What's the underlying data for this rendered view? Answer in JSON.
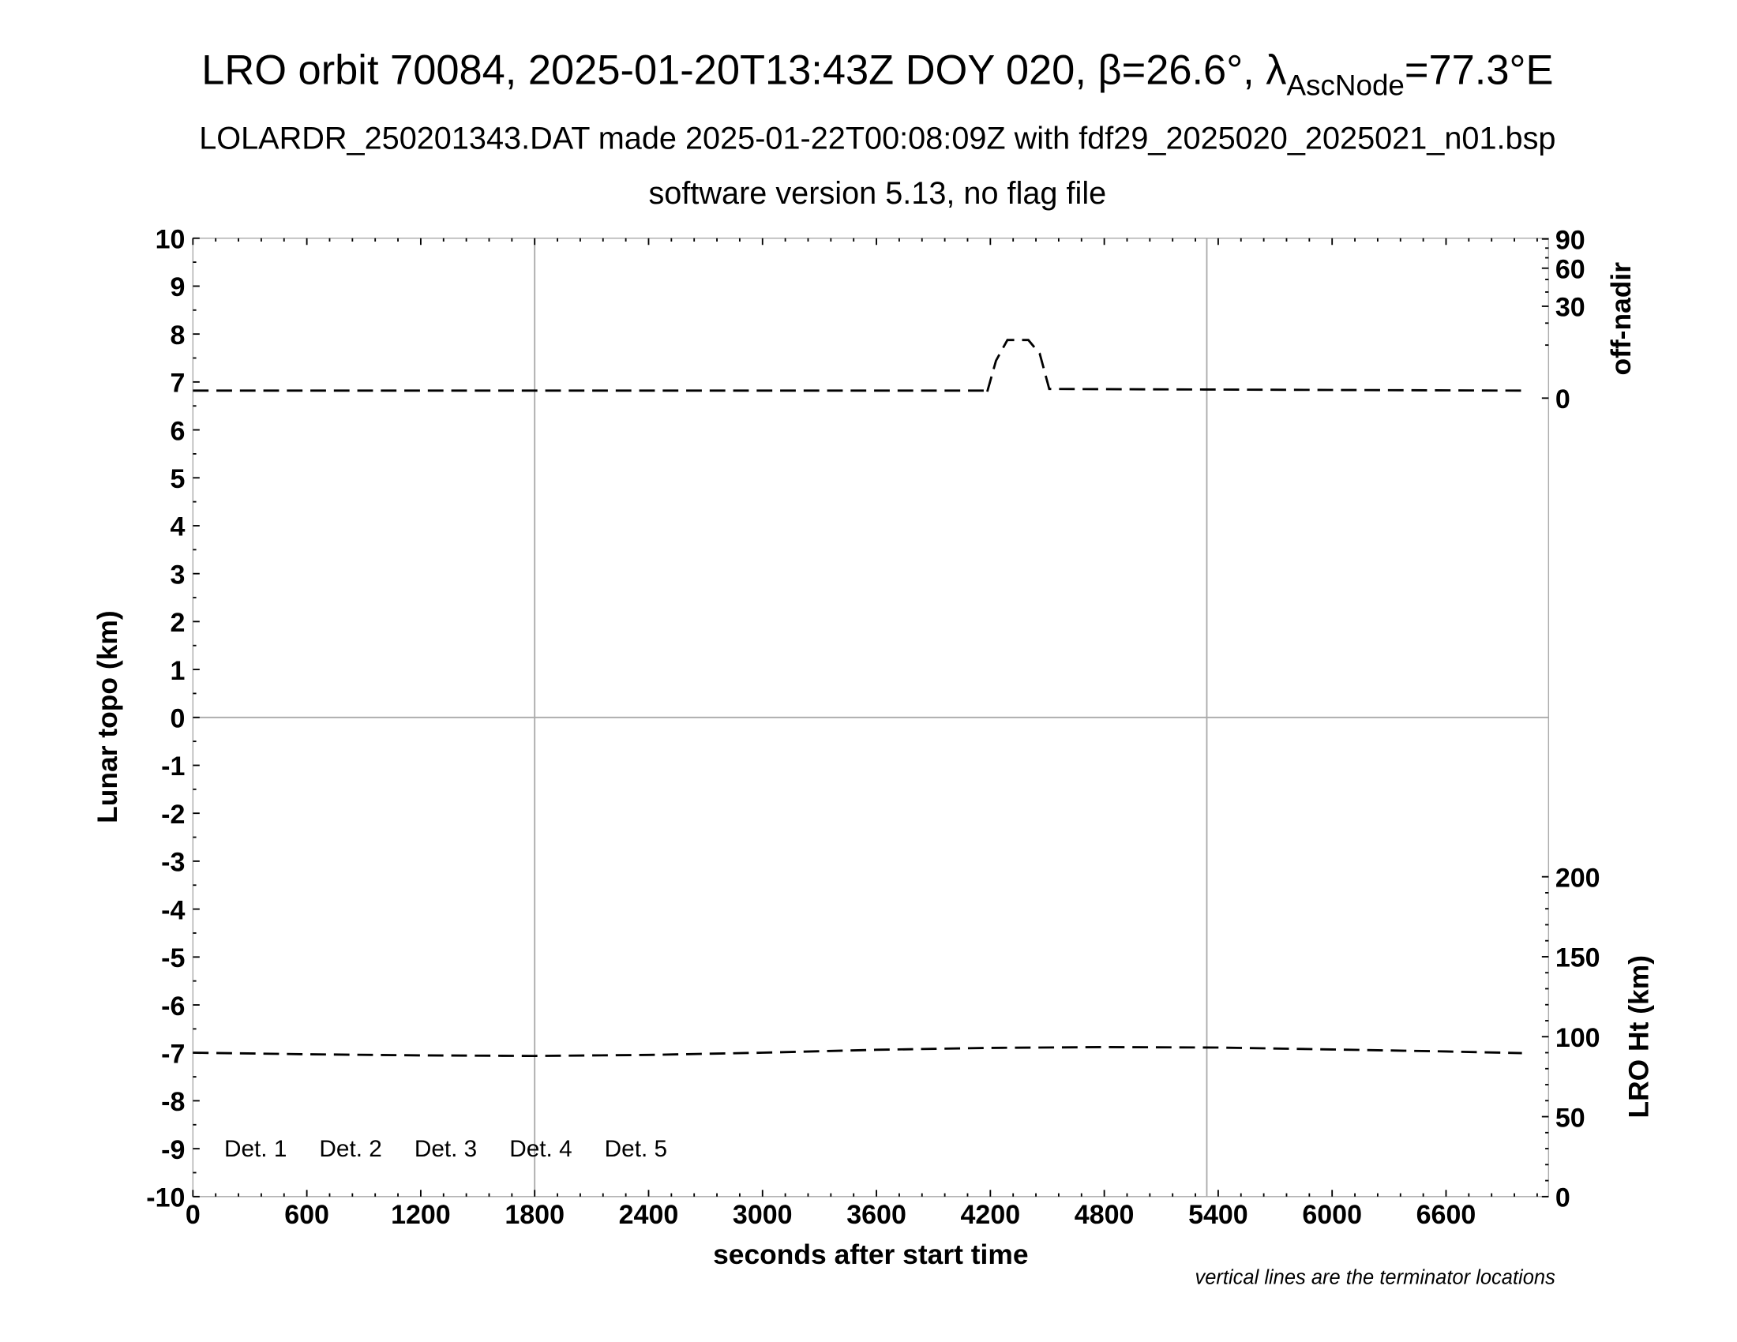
{
  "title": {
    "main_prefix": "LRO orbit 70084, 2025-01-20T13:43Z DOY 020, β=26.6°, λ",
    "main_sub": "AscNode",
    "main_suffix": "=77.3°E",
    "line2": "LOLARDR_250201343.DAT made 2025-01-22T00:08:09Z with fdf29_2025020_2025021_n01.bsp",
    "line3": "software version 5.13, no flag file"
  },
  "footnote": "vertical lines are the terminator locations",
  "chart_data": {
    "type": "line",
    "xlabel": "seconds after start time",
    "ylabel": "Lunar topo (km)",
    "y2_top_label": "off-nadir",
    "y2_bottom_label": "LRO Ht (km)",
    "xlim": [
      0,
      7140
    ],
    "ylim": [
      -10,
      10
    ],
    "x_ticks": [
      0,
      600,
      1200,
      1800,
      2400,
      3000,
      3600,
      4200,
      4800,
      5400,
      6000,
      6600
    ],
    "y_ticks": [
      10,
      9,
      8,
      7,
      6,
      5,
      4,
      3,
      2,
      1,
      0,
      -1,
      -2,
      -3,
      -4,
      -5,
      -6,
      -7,
      -8,
      -9,
      -10
    ],
    "off_nadir_scale": "sqrt",
    "off_nadir_ticks": [
      0,
      30,
      60,
      90
    ],
    "ht_ticks": [
      0,
      50,
      100,
      150,
      200
    ],
    "terminator_lines_x": [
      1800,
      5340
    ],
    "legend": [
      {
        "label": "Det. 1",
        "color": "#000000"
      },
      {
        "label": "Det. 2",
        "color": "#0000ff"
      },
      {
        "label": "Det. 3",
        "color": "#00ff00"
      },
      {
        "label": "Det. 4",
        "color": "#ffa500"
      },
      {
        "label": "Det. 5",
        "color": "#ff0000"
      }
    ],
    "series": [
      {
        "axis": "off-nadir (deg)",
        "style": "dashed",
        "x": [
          0,
          4170,
          4180,
          4230,
          4290,
          4400,
          4460,
          4510,
          7000
        ],
        "y": [
          0.2,
          0.2,
          0.05,
          5,
          12,
          12,
          7,
          0.3,
          0.2
        ]
      },
      {
        "axis": "LRO Ht (km)",
        "style": "dashed",
        "x": [
          0,
          600,
          1200,
          1800,
          2400,
          3000,
          3600,
          4200,
          4800,
          5400,
          6000,
          6600,
          7000
        ],
        "y": [
          90,
          89,
          88.3,
          88,
          88.6,
          90,
          91.8,
          93,
          93.5,
          93.2,
          92,
          90.8,
          89.7
        ]
      }
    ]
  }
}
